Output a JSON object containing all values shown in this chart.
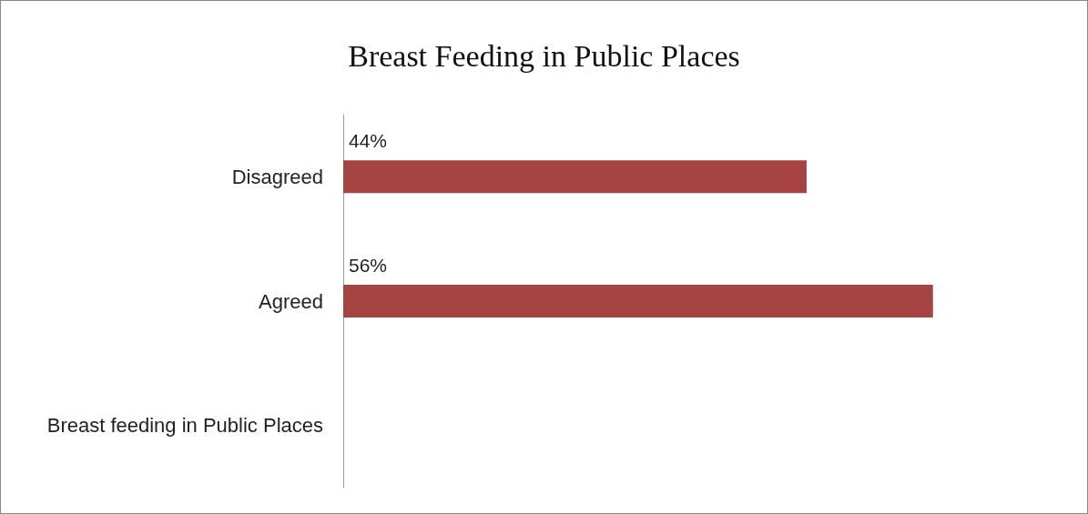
{
  "chart_data": {
    "type": "bar",
    "title": "Breast Feeding in Public Places",
    "orientation": "horizontal",
    "categories": [
      "Disagreed",
      "Agreed",
      "Breast feeding in Public Places"
    ],
    "values": [
      44,
      56,
      null
    ],
    "value_labels": [
      "44%",
      "56%",
      null
    ],
    "color": "#a54443"
  }
}
